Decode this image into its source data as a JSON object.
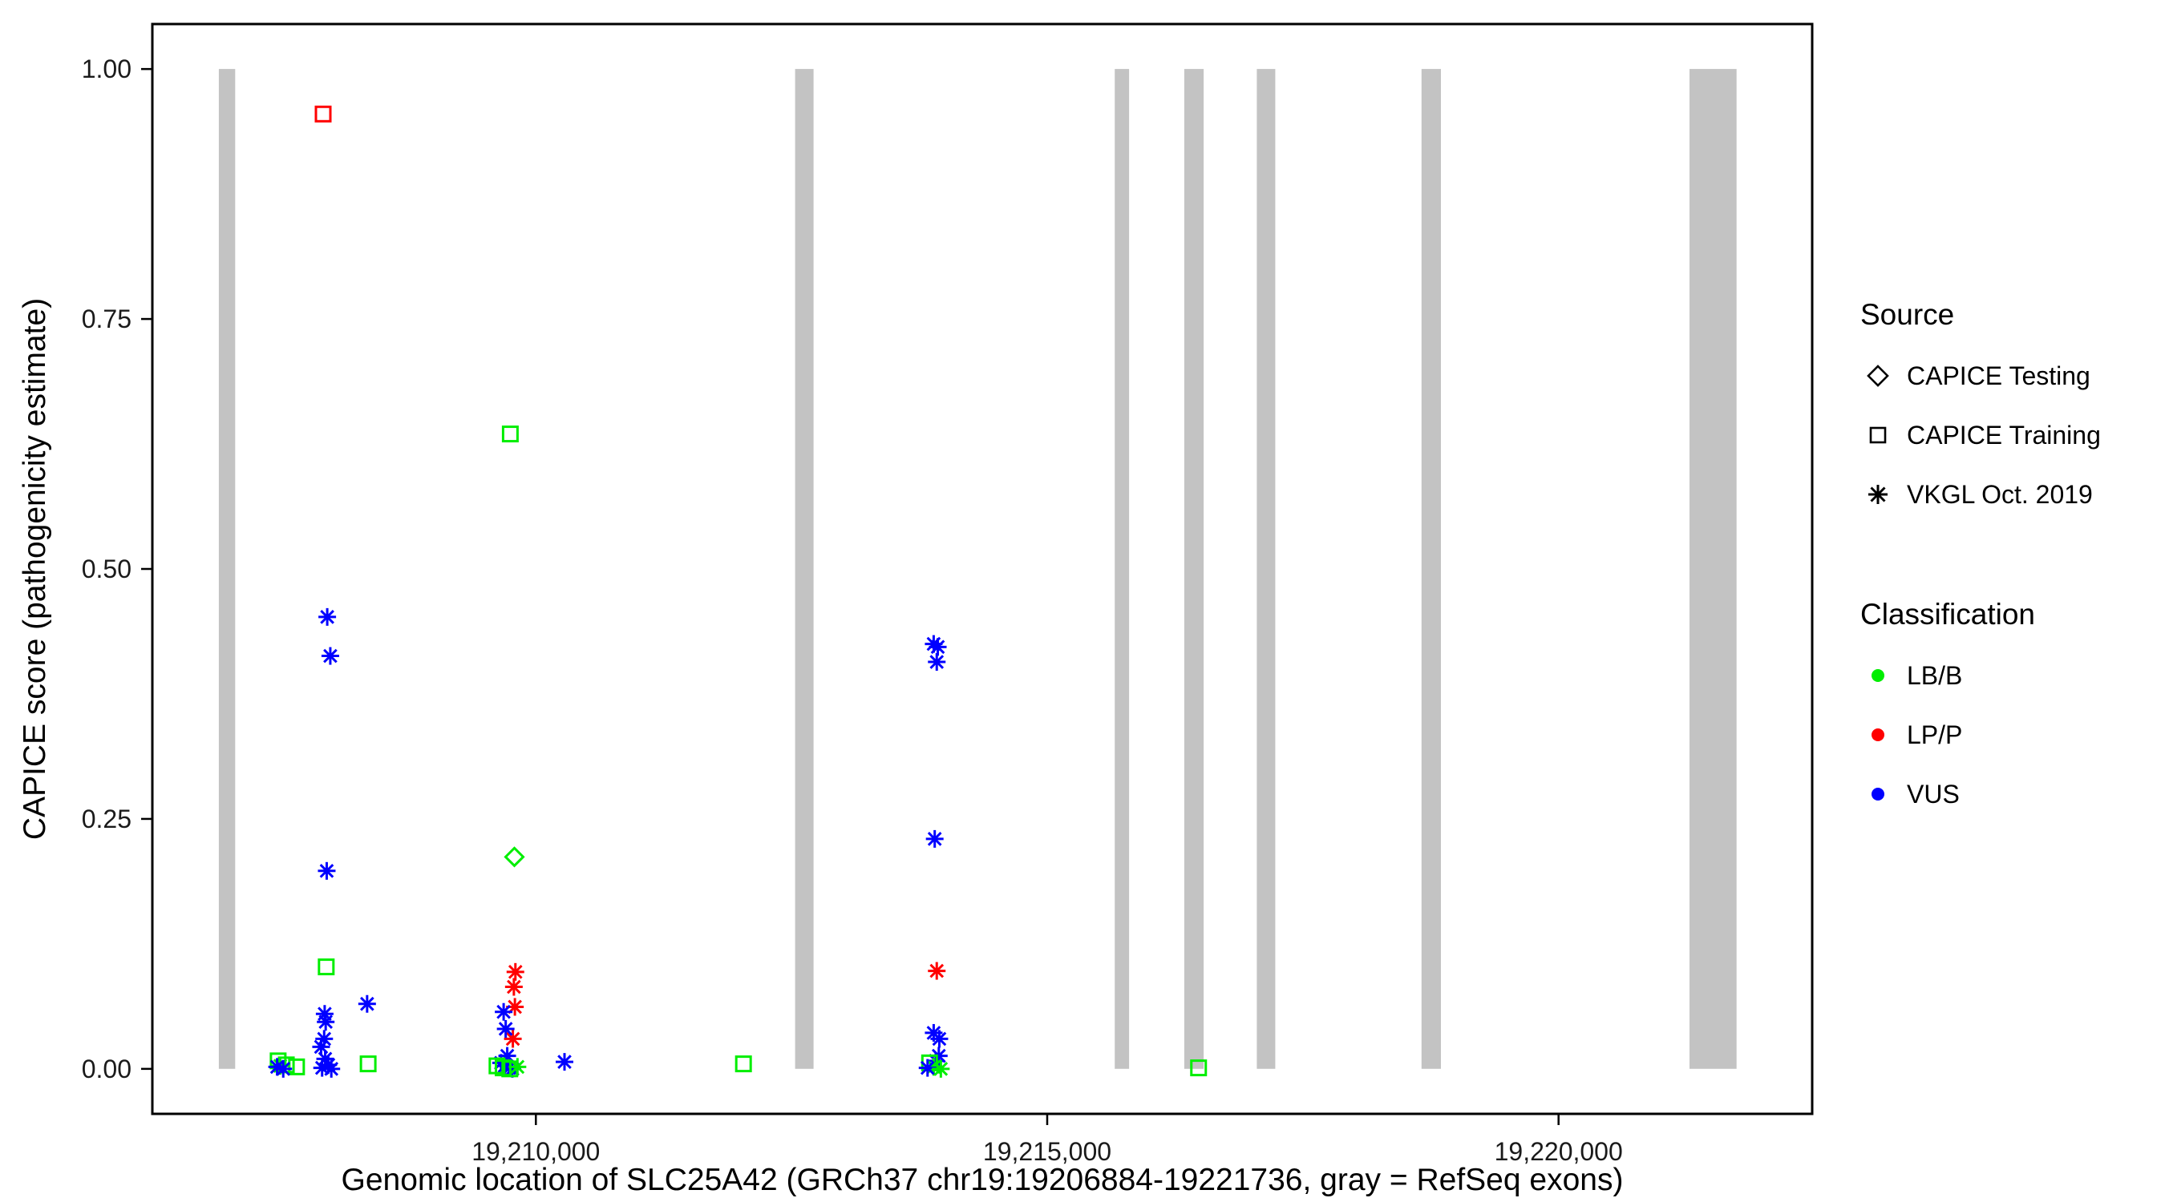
{
  "chart_data": {
    "type": "scatter",
    "title": "",
    "xlabel": "Genomic location of SLC25A42 (GRCh37 chr19:19206884-19221736, gray = RefSeq exons)",
    "ylabel": "CAPICE score (pathogenicity estimate)",
    "xlim": [
      19206250,
      19222480
    ],
    "ylim": [
      -0.045,
      1.045
    ],
    "grid": false,
    "xticks": [
      {
        "value": 19210000,
        "label": "19,210,000"
      },
      {
        "value": 19215000,
        "label": "19,215,000"
      },
      {
        "value": 19220000,
        "label": "19,220,000"
      }
    ],
    "yticks": [
      {
        "value": 0.0,
        "label": "0.00"
      },
      {
        "value": 0.25,
        "label": "0.25"
      },
      {
        "value": 0.5,
        "label": "0.50"
      },
      {
        "value": 0.75,
        "label": "0.75"
      },
      {
        "value": 1.0,
        "label": "1.00"
      }
    ],
    "exon_color": "#C3C3C3",
    "exons": [
      [
        19206900,
        19207060
      ],
      [
        19212535,
        19212715
      ],
      [
        19215660,
        19215800
      ],
      [
        19216340,
        19216530
      ],
      [
        19217050,
        19217230
      ],
      [
        19218660,
        19218850
      ],
      [
        19221280,
        19221740
      ]
    ],
    "classification_colors": {
      "LB/B": "#00EE00",
      "LP/P": "#FF0000",
      "VUS": "#0000FF"
    },
    "source_shapes": {
      "CAPICE Testing": "diamond",
      "CAPICE Training": "square",
      "VKGL Oct. 2019": "asterisk"
    },
    "points": [
      {
        "x": 19207920,
        "y": 0.955,
        "source": "CAPICE Training",
        "classification": "LP/P"
      },
      {
        "x": 19207960,
        "y": 0.452,
        "source": "VKGL Oct. 2019",
        "classification": "VUS"
      },
      {
        "x": 19207990,
        "y": 0.413,
        "source": "VKGL Oct. 2019",
        "classification": "VUS"
      },
      {
        "x": 19207955,
        "y": 0.198,
        "source": "VKGL Oct. 2019",
        "classification": "VUS"
      },
      {
        "x": 19207950,
        "y": 0.102,
        "source": "CAPICE Training",
        "classification": "LB/B"
      },
      {
        "x": 19208350,
        "y": 0.065,
        "source": "VKGL Oct. 2019",
        "classification": "VUS"
      },
      {
        "x": 19207935,
        "y": 0.055,
        "source": "VKGL Oct. 2019",
        "classification": "VUS"
      },
      {
        "x": 19207945,
        "y": 0.047,
        "source": "VKGL Oct. 2019",
        "classification": "VUS"
      },
      {
        "x": 19207930,
        "y": 0.03,
        "source": "VKGL Oct. 2019",
        "classification": "VUS"
      },
      {
        "x": 19207900,
        "y": 0.022,
        "source": "VKGL Oct. 2019",
        "classification": "VUS"
      },
      {
        "x": 19207940,
        "y": 0.01,
        "source": "VKGL Oct. 2019",
        "classification": "VUS"
      },
      {
        "x": 19207970,
        "y": 0.004,
        "source": "VKGL Oct. 2019",
        "classification": "VUS"
      },
      {
        "x": 19207910,
        "y": 0.001,
        "source": "VKGL Oct. 2019",
        "classification": "VUS"
      },
      {
        "x": 19208000,
        "y": 0.0,
        "source": "VKGL Oct. 2019",
        "classification": "VUS"
      },
      {
        "x": 19207480,
        "y": 0.008,
        "source": "CAPICE Training",
        "classification": "LB/B"
      },
      {
        "x": 19207560,
        "y": 0.004,
        "source": "CAPICE Training",
        "classification": "LB/B"
      },
      {
        "x": 19207660,
        "y": 0.002,
        "source": "CAPICE Training",
        "classification": "LB/B"
      },
      {
        "x": 19208360,
        "y": 0.005,
        "source": "CAPICE Training",
        "classification": "LB/B"
      },
      {
        "x": 19207500,
        "y": 0.003,
        "source": "VKGL Oct. 2019",
        "classification": "LB/B"
      },
      {
        "x": 19207470,
        "y": 0.002,
        "source": "VKGL Oct. 2019",
        "classification": "VUS"
      },
      {
        "x": 19207530,
        "y": 0.0,
        "source": "VKGL Oct. 2019",
        "classification": "VUS"
      },
      {
        "x": 19209750,
        "y": 0.635,
        "source": "CAPICE Training",
        "classification": "LB/B"
      },
      {
        "x": 19209790,
        "y": 0.212,
        "source": "CAPICE Testing",
        "classification": "LB/B"
      },
      {
        "x": 19209800,
        "y": 0.097,
        "source": "VKGL Oct. 2019",
        "classification": "LP/P"
      },
      {
        "x": 19209785,
        "y": 0.082,
        "source": "VKGL Oct. 2019",
        "classification": "LP/P"
      },
      {
        "x": 19209795,
        "y": 0.062,
        "source": "VKGL Oct. 2019",
        "classification": "LP/P"
      },
      {
        "x": 19209775,
        "y": 0.03,
        "source": "VKGL Oct. 2019",
        "classification": "LP/P"
      },
      {
        "x": 19209685,
        "y": 0.057,
        "source": "VKGL Oct. 2019",
        "classification": "VUS"
      },
      {
        "x": 19209705,
        "y": 0.04,
        "source": "VKGL Oct. 2019",
        "classification": "VUS"
      },
      {
        "x": 19209720,
        "y": 0.013,
        "source": "VKGL Oct. 2019",
        "classification": "VUS"
      },
      {
        "x": 19209660,
        "y": 0.006,
        "source": "VKGL Oct. 2019",
        "classification": "VUS"
      },
      {
        "x": 19209695,
        "y": 0.003,
        "source": "VKGL Oct. 2019",
        "classification": "VUS"
      },
      {
        "x": 19209740,
        "y": 0.001,
        "source": "VKGL Oct. 2019",
        "classification": "VUS"
      },
      {
        "x": 19209770,
        "y": 0.0,
        "source": "VKGL Oct. 2019",
        "classification": "VUS"
      },
      {
        "x": 19209620,
        "y": 0.003,
        "source": "CAPICE Training",
        "classification": "LB/B"
      },
      {
        "x": 19209680,
        "y": 0.001,
        "source": "CAPICE Training",
        "classification": "LB/B"
      },
      {
        "x": 19209745,
        "y": 0.0,
        "source": "CAPICE Training",
        "classification": "LB/B"
      },
      {
        "x": 19209820,
        "y": 0.002,
        "source": "VKGL Oct. 2019",
        "classification": "LB/B"
      },
      {
        "x": 19210280,
        "y": 0.007,
        "source": "VKGL Oct. 2019",
        "classification": "VUS"
      },
      {
        "x": 19212030,
        "y": 0.005,
        "source": "CAPICE Training",
        "classification": "LB/B"
      },
      {
        "x": 19213890,
        "y": 0.425,
        "source": "VKGL Oct. 2019",
        "classification": "VUS"
      },
      {
        "x": 19213930,
        "y": 0.422,
        "source": "VKGL Oct. 2019",
        "classification": "VUS"
      },
      {
        "x": 19213920,
        "y": 0.407,
        "source": "VKGL Oct. 2019",
        "classification": "VUS"
      },
      {
        "x": 19213900,
        "y": 0.23,
        "source": "VKGL Oct. 2019",
        "classification": "VUS"
      },
      {
        "x": 19213920,
        "y": 0.098,
        "source": "VKGL Oct. 2019",
        "classification": "LP/P"
      },
      {
        "x": 19213890,
        "y": 0.036,
        "source": "VKGL Oct. 2019",
        "classification": "VUS"
      },
      {
        "x": 19213945,
        "y": 0.03,
        "source": "VKGL Oct. 2019",
        "classification": "VUS"
      },
      {
        "x": 19213940,
        "y": 0.013,
        "source": "VKGL Oct. 2019",
        "classification": "VUS"
      },
      {
        "x": 19213910,
        "y": 0.008,
        "source": "VKGL Oct. 2019",
        "classification": "VUS"
      },
      {
        "x": 19213850,
        "y": 0.006,
        "source": "CAPICE Training",
        "classification": "LB/B"
      },
      {
        "x": 19213890,
        "y": 0.002,
        "source": "VKGL Oct. 2019",
        "classification": "LB/B"
      },
      {
        "x": 19213830,
        "y": 0.001,
        "source": "VKGL Oct. 2019",
        "classification": "VUS"
      },
      {
        "x": 19213960,
        "y": 0.0,
        "source": "VKGL Oct. 2019",
        "classification": "LB/B"
      },
      {
        "x": 19216480,
        "y": 0.001,
        "source": "CAPICE Training",
        "classification": "LB/B"
      }
    ]
  },
  "legend": {
    "source": {
      "title": "Source",
      "items": [
        {
          "label": "CAPICE Testing",
          "shape": "diamond"
        },
        {
          "label": "CAPICE Training",
          "shape": "square"
        },
        {
          "label": "VKGL Oct. 2019",
          "shape": "asterisk"
        }
      ]
    },
    "classification": {
      "title": "Classification",
      "items": [
        {
          "label": "LB/B",
          "color": "#00EE00"
        },
        {
          "label": "LP/P",
          "color": "#FF0000"
        },
        {
          "label": "VUS",
          "color": "#0000FF"
        }
      ]
    }
  }
}
